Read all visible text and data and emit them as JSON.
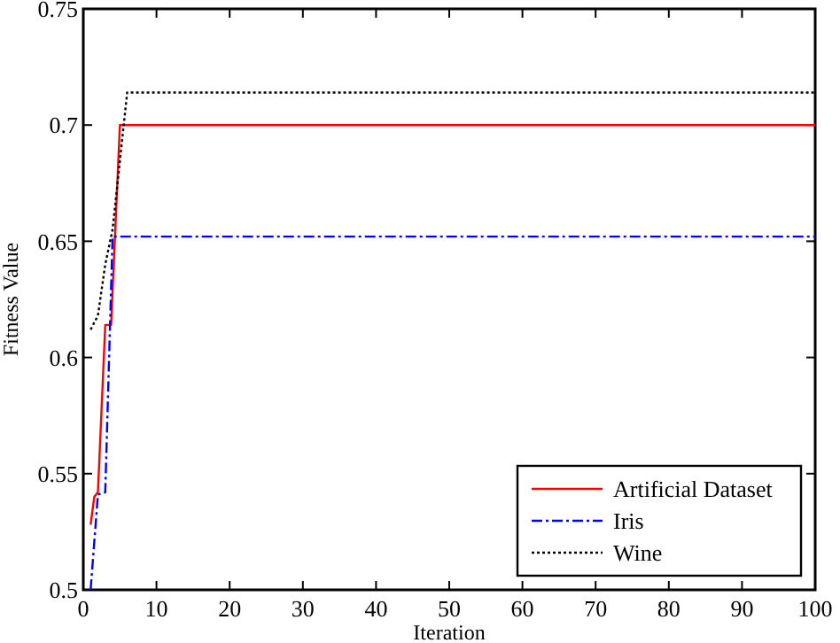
{
  "chart_data": {
    "type": "line",
    "xlabel": "Iteration",
    "ylabel": "Fitness Value",
    "xlim": [
      0,
      100
    ],
    "xticks": [
      0,
      10,
      20,
      30,
      40,
      50,
      60,
      70,
      80,
      90,
      100
    ],
    "ylim": [
      0.5,
      0.75
    ],
    "yticks": [
      0.5,
      0.55,
      0.6,
      0.65,
      0.7,
      0.75
    ],
    "legend": "bottom right",
    "grid": false,
    "series": [
      {
        "name": "Artificial Dataset",
        "color": "#ff0000",
        "line_style": "solid",
        "x": [
          1,
          1.5,
          2,
          3,
          3.8,
          5,
          100
        ],
        "values": [
          0.528,
          0.54,
          0.542,
          0.614,
          0.614,
          0.7,
          0.7
        ]
      },
      {
        "name": "Iris",
        "color": "#0000ff",
        "line_style": "dashdot",
        "x": [
          1,
          2,
          3,
          4,
          100
        ],
        "values": [
          0.5,
          0.541,
          0.542,
          0.652,
          0.652
        ]
      },
      {
        "name": "Wine",
        "color": "#000000",
        "line_style": "dotted",
        "x": [
          1,
          2,
          3,
          4,
          6,
          100
        ],
        "values": [
          0.612,
          0.618,
          0.64,
          0.655,
          0.714,
          0.714
        ]
      }
    ]
  }
}
